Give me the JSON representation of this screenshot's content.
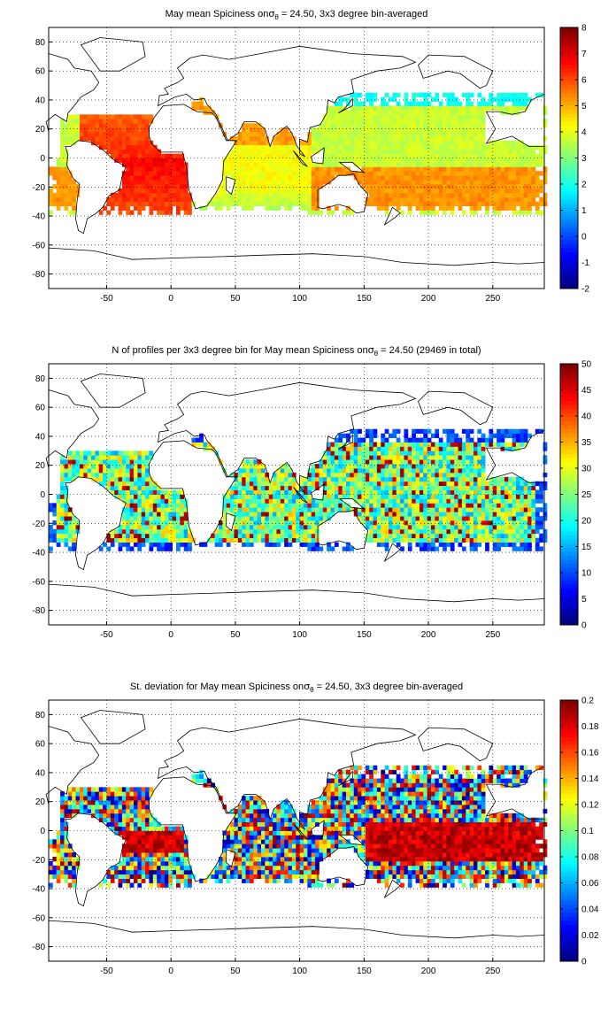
{
  "chart_data": [
    {
      "type": "heatmap",
      "title_pre": "May mean Spiciness on",
      "sigma_symbol": "σ",
      "sigma_sub": "θ",
      "title_post": " = 24.50, 3x3 degree bin-averaged",
      "xlim": [
        -95,
        290
      ],
      "ylim": [
        -90,
        90
      ],
      "xticks": [
        -50,
        0,
        50,
        100,
        150,
        200,
        250
      ],
      "yticks": [
        -80,
        -60,
        -40,
        -20,
        0,
        20,
        40,
        60,
        80
      ],
      "grid": "dotted",
      "colorbar": {
        "min": -2,
        "max": 8,
        "ticks": [
          -2,
          -1,
          0,
          1,
          2,
          3,
          4,
          5,
          6,
          7,
          8
        ],
        "colormap": "jet"
      },
      "field": "spiciness"
    },
    {
      "type": "heatmap",
      "title_pre": "N of profiles per 3x3 degree bin for May mean Spiciness on",
      "sigma_symbol": "σ",
      "sigma_sub": "θ",
      "title_post": " = 24.50 (29469 in total)",
      "xlim": [
        -95,
        290
      ],
      "ylim": [
        -90,
        90
      ],
      "xticks": [
        -50,
        0,
        50,
        100,
        150,
        200,
        250
      ],
      "yticks": [
        -80,
        -60,
        -40,
        -20,
        0,
        20,
        40,
        60,
        80
      ],
      "grid": "dotted",
      "colorbar": {
        "min": 0,
        "max": 50,
        "ticks": [
          0,
          5,
          10,
          15,
          20,
          25,
          30,
          35,
          40,
          45,
          50
        ],
        "colormap": "jet"
      },
      "field": "count"
    },
    {
      "type": "heatmap",
      "title_pre": "St. deviation for May mean Spiciness on",
      "sigma_symbol": "σ",
      "sigma_sub": "θ",
      "title_post": " = 24.50, 3x3 degree bin-averaged",
      "xlim": [
        -95,
        290
      ],
      "ylim": [
        -90,
        90
      ],
      "xticks": [
        -50,
        0,
        50,
        100,
        150,
        200,
        250
      ],
      "yticks": [
        -80,
        -60,
        -40,
        -20,
        0,
        20,
        40,
        60,
        80
      ],
      "grid": "dotted",
      "colorbar": {
        "min": 0,
        "max": 0.2,
        "ticks": [
          0,
          0.02,
          0.04,
          0.06,
          0.08,
          0.1,
          0.12,
          0.14,
          0.16,
          0.18,
          0.2
        ],
        "colormap": "jet"
      },
      "field": "stdev"
    }
  ]
}
